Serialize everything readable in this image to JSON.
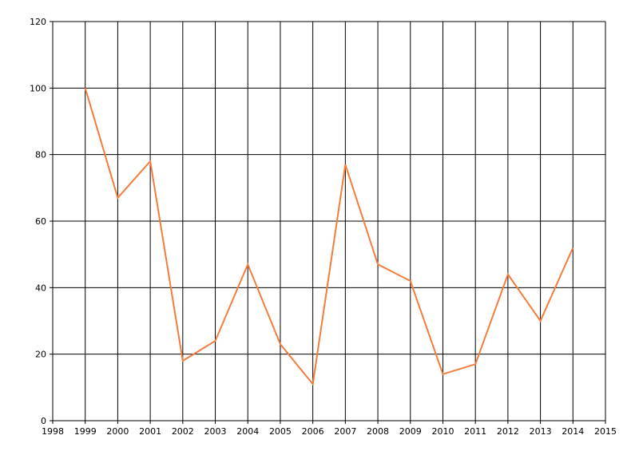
{
  "chart_data": {
    "type": "line",
    "x": [
      1999,
      2000,
      2001,
      2002,
      2003,
      2004,
      2005,
      2006,
      2007,
      2008,
      2009,
      2010,
      2011,
      2012,
      2013,
      2014
    ],
    "series": [
      {
        "color": "#f47c3c",
        "values": [
          100,
          67,
          78,
          18,
          24,
          47,
          23,
          11,
          77,
          47,
          42,
          14,
          17,
          44,
          30,
          52
        ]
      }
    ],
    "xlim": [
      1998,
      2015
    ],
    "xticks": [
      1998,
      1999,
      2000,
      2001,
      2002,
      2003,
      2004,
      2005,
      2006,
      2007,
      2008,
      2009,
      2010,
      2011,
      2012,
      2013,
      2014,
      2015
    ],
    "ylim": [
      0,
      120
    ],
    "yticks": [
      0,
      20,
      40,
      60,
      80,
      100,
      120
    ],
    "grid": true
  }
}
